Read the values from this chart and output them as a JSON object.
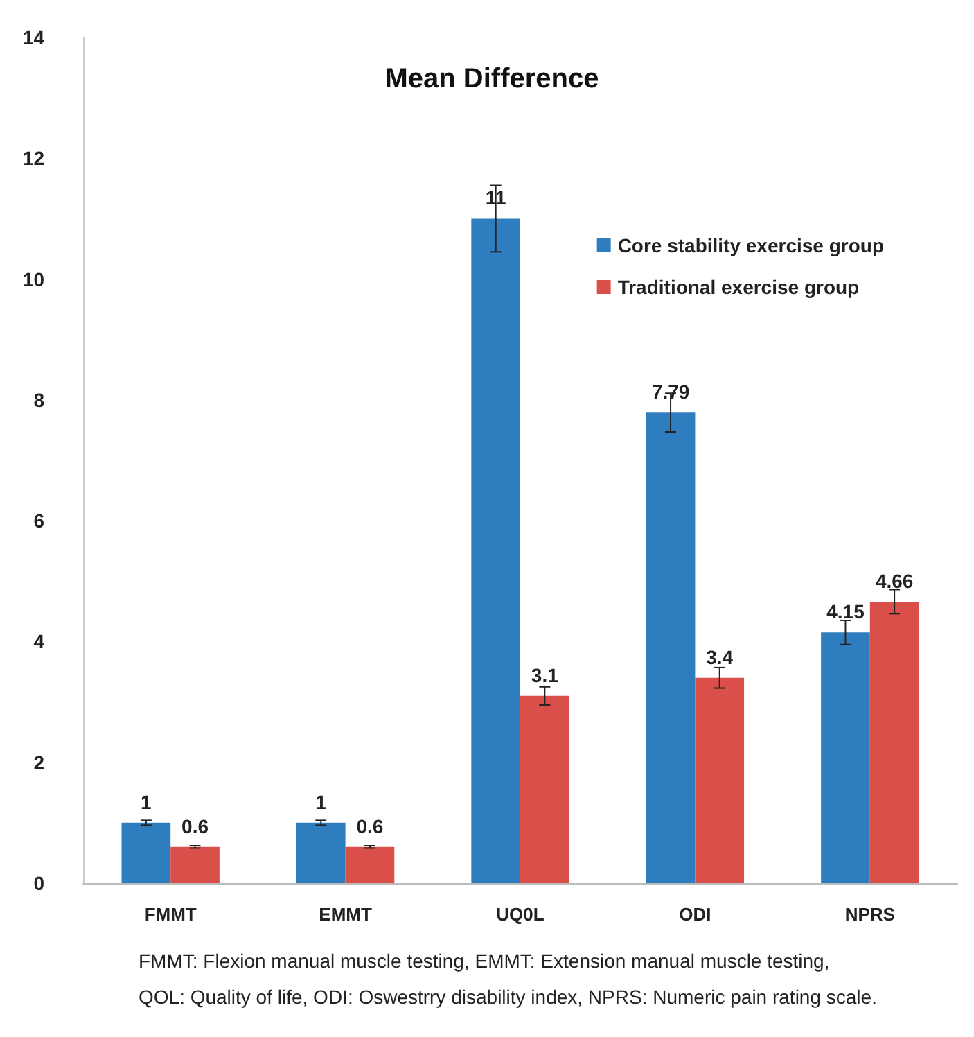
{
  "chart_data": {
    "type": "bar",
    "title": "Mean Difference",
    "categories": [
      "FMMT",
      "EMMT",
      "UQ0L",
      "ODI",
      "NPRS"
    ],
    "series": [
      {
        "name": "Core stability exercise group",
        "color": "#2e7ebf",
        "values": [
          1,
          1,
          11,
          7.79,
          4.15
        ],
        "errors": [
          0.04,
          0.04,
          0.55,
          0.32,
          0.2
        ]
      },
      {
        "name": "Traditional exercise group",
        "color": "#db4f4a",
        "values": [
          0.6,
          0.6,
          3.1,
          3.4,
          4.66
        ],
        "errors": [
          0.02,
          0.02,
          0.15,
          0.17,
          0.2
        ]
      }
    ],
    "ylim": [
      0,
      14
    ],
    "yticks": [
      0,
      2,
      4,
      6,
      8,
      10,
      12,
      14
    ],
    "grid": false,
    "legend": "top right",
    "data_labels": true,
    "annotations": [
      "FMMT: Flexion manual muscle testing, EMMT: Extension manual muscle testing,",
      "QOL: Quality of life, ODI: Oswestrry disability index, NPRS: Numeric pain rating scale."
    ]
  }
}
